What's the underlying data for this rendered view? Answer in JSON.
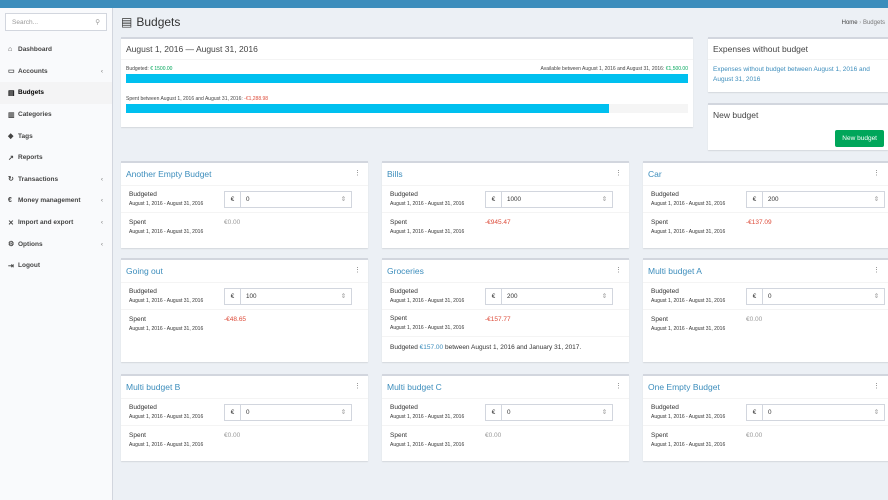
{
  "sidebar": {
    "search_placeholder": "Search...",
    "items": [
      {
        "label": "Dashboard",
        "icon": "home-icon",
        "glyph": "⌂"
      },
      {
        "label": "Accounts",
        "icon": "credit-card-icon",
        "glyph": "▭",
        "chevron": "‹"
      },
      {
        "label": "Budgets",
        "icon": "tasks-icon",
        "glyph": "▤",
        "active": true
      },
      {
        "label": "Categories",
        "icon": "bar-chart-icon",
        "glyph": "▥"
      },
      {
        "label": "Tags",
        "icon": "tag-icon",
        "glyph": "◆"
      },
      {
        "label": "Reports",
        "icon": "line-chart-icon",
        "glyph": "↗"
      },
      {
        "label": "Transactions",
        "icon": "repeat-icon",
        "glyph": "↻",
        "chevron": "‹"
      },
      {
        "label": "Money management",
        "icon": "euro-icon",
        "glyph": "€",
        "chevron": "‹"
      },
      {
        "label": "Import and export",
        "icon": "arrows-icon",
        "glyph": "✕",
        "chevron": "‹"
      },
      {
        "label": "Options",
        "icon": "cogs-icon",
        "glyph": "⚙",
        "chevron": "‹"
      },
      {
        "label": "Logout",
        "icon": "sign-out-icon",
        "glyph": "⇥"
      }
    ]
  },
  "header": {
    "title": "Budgets",
    "breadcrumb": [
      "Home",
      "Budgets"
    ]
  },
  "overview": {
    "title": "August 1, 2016 — August 31, 2016",
    "budgeted_label": "Budgeted:",
    "budgeted_value": "€ 1500.00",
    "available_label": "Available between August 1, 2016 and August 31, 2016:",
    "available_value": "€1,500.00",
    "budgeted_fill": 1.0,
    "spent_label": "Spent between August 1, 2016 and August 31, 2016:",
    "spent_value": "-€1,288.98",
    "spent_fill": 0.86
  },
  "no_budget": {
    "title": "Expenses without budget",
    "link": "Expenses without budget between August 1, 2016 and August 31, 2016"
  },
  "new_budget": {
    "title": "New budget",
    "button": "New budget"
  },
  "labels": {
    "budgeted": "Budgeted",
    "spent": "Spent",
    "period": "August 1, 2016 - August 31, 2016",
    "currency": "€"
  },
  "budgets": [
    {
      "name": "Another Empty Budget",
      "amount": "0",
      "spent": "€0.00",
      "spent_neg": false
    },
    {
      "name": "Bills",
      "amount": "1000",
      "spent": "-€945.47",
      "spent_neg": true
    },
    {
      "name": "Car",
      "amount": "200",
      "spent": "-€137.09",
      "spent_neg": true
    },
    {
      "name": "Going out",
      "amount": "100",
      "spent": "-€48.65",
      "spent_neg": true
    },
    {
      "name": "Groceries",
      "amount": "200",
      "spent": "-€157.77",
      "spent_neg": true,
      "note": {
        "pre": "Budgeted",
        "amount": "€157.00",
        "post": "between August 1, 2016 and January 31, 2017."
      }
    },
    {
      "name": "Multi budget A",
      "amount": "0",
      "spent": "€0.00",
      "spent_neg": false
    },
    {
      "name": "Multi budget B",
      "amount": "0",
      "spent": "€0.00",
      "spent_neg": false
    },
    {
      "name": "Multi budget C",
      "amount": "0",
      "spent": "€0.00",
      "spent_neg": false
    },
    {
      "name": "One Empty Budget",
      "amount": "0",
      "spent": "€0.00",
      "spent_neg": false
    }
  ]
}
